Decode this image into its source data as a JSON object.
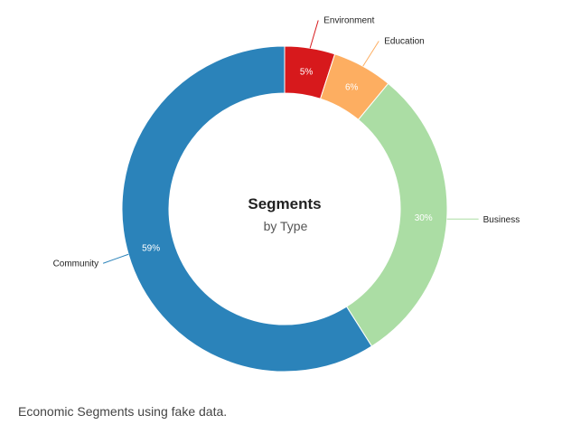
{
  "chart_data": {
    "type": "pie",
    "donut": true,
    "center_title": "Segments",
    "center_subtitle": "by Type",
    "slices": [
      {
        "label": "Environment",
        "value": 5,
        "percent_label": "5%",
        "color": "#d7191c",
        "text_color": "#ffffff",
        "label_side": "top"
      },
      {
        "label": "Education",
        "value": 6,
        "percent_label": "6%",
        "color": "#fdae61",
        "text_color": "#ffffff",
        "label_side": "top"
      },
      {
        "label": "Business",
        "value": 30,
        "percent_label": "30%",
        "color": "#abdda4",
        "text_color": "#ffffff",
        "label_side": "right"
      },
      {
        "label": "Community",
        "value": 59,
        "percent_label": "59%",
        "color": "#2b83ba",
        "text_color": "#ffffff",
        "label_side": "left"
      }
    ]
  },
  "caption": "Economic Segments using fake data."
}
